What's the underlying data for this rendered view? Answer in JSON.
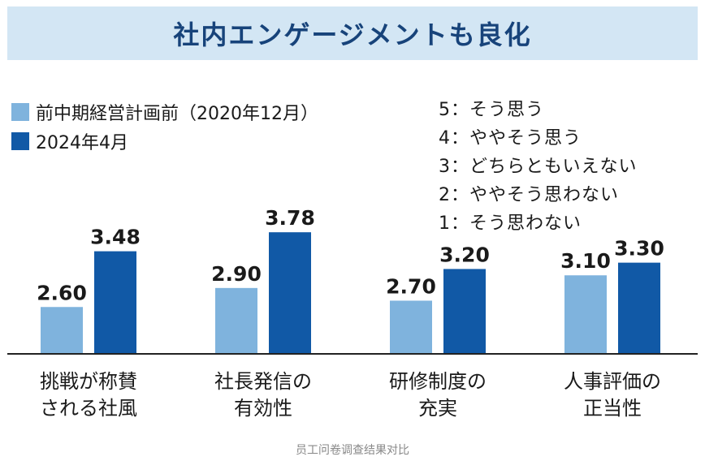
{
  "colors": {
    "banner_bg": "#d3e6f4",
    "title": "#17437a",
    "series_before": "#7fb3dd",
    "series_after": "#1159a6",
    "axis": "#222222"
  },
  "banner": {
    "title": "社内エンゲージメントも良化"
  },
  "legend": [
    {
      "label": "前中期経営計画前（2020年12月）",
      "color": "#7fb3dd"
    },
    {
      "label": "2024年4月",
      "color": "#1159a6"
    }
  ],
  "scale_notes": [
    "5：そう思う",
    "4：ややそう思う",
    "3：どちらともいえない",
    "2：ややそう思わない",
    "1：そう思わない"
  ],
  "caption": "员工问卷调查结果对比",
  "chart_data": {
    "type": "bar",
    "title": "社内エンゲージメントも良化",
    "categories": [
      [
        "挑戦が称賛",
        "される社風"
      ],
      [
        "社長発信の",
        "有効性"
      ],
      [
        "研修制度の",
        "充実"
      ],
      [
        "人事評価の",
        "正当性"
      ]
    ],
    "series": [
      {
        "name": "前中期経営計画前（2020年12月）",
        "values": [
          2.6,
          2.9,
          2.7,
          3.1
        ],
        "labels": [
          "2.60",
          "2.90",
          "2.70",
          "3.10"
        ]
      },
      {
        "name": "2024年4月",
        "values": [
          3.48,
          3.78,
          3.2,
          3.3
        ],
        "labels": [
          "3.48",
          "3.78",
          "3.20",
          "3.30"
        ]
      }
    ],
    "ylim": [
      1.86,
      4.0
    ],
    "xlabel": "",
    "ylabel": "",
    "grid": false,
    "legend_position": "top-left"
  }
}
